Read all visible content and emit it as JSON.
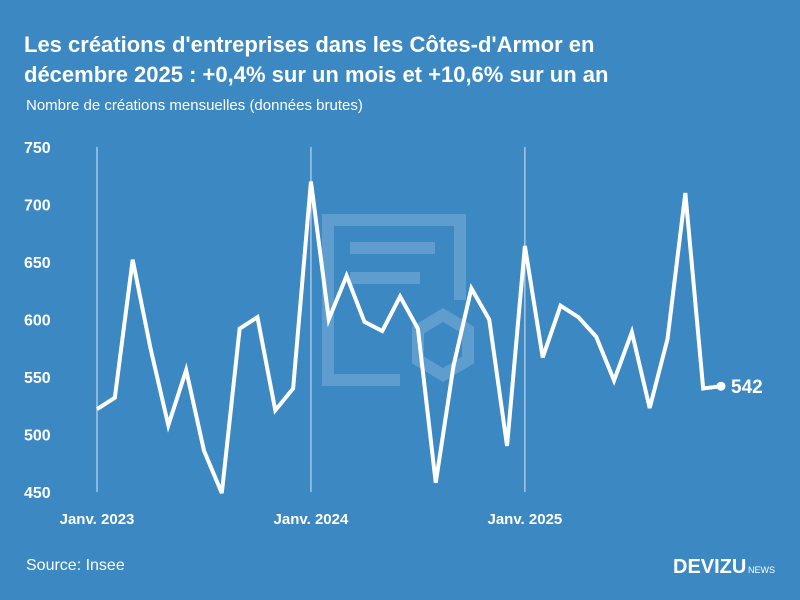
{
  "chart_data": {
    "type": "line",
    "title": "Les créations d'entreprises dans les Côtes-d'Armor en décembre 2025 : +0,4% sur un mois et +10,6% sur un an",
    "subtitle": "Nombre de créations mensuelles (données brutes)",
    "source": "Source: Insee",
    "brand": "DEVIZU",
    "brand_suffix": "NEWS",
    "categories": [
      "Janv. 2023",
      null,
      null,
      null,
      null,
      null,
      null,
      null,
      null,
      null,
      null,
      null,
      "Janv. 2024",
      null,
      null,
      null,
      null,
      null,
      null,
      null,
      null,
      null,
      null,
      null,
      "Janv. 2025",
      null,
      null,
      null,
      null,
      null,
      null,
      null,
      null,
      null,
      null,
      null
    ],
    "series": [
      {
        "color": "#ffffff",
        "values": [
          522,
          532,
          652,
          575,
          508,
          556,
          486,
          449,
          592,
          602,
          521,
          540,
          720,
          600,
          638,
          598,
          590,
          620,
          592,
          458,
          560,
          627,
          600,
          490,
          664,
          567,
          612,
          602,
          585,
          547,
          589,
          523,
          583,
          710,
          540,
          542
        ]
      }
    ],
    "ylim": [
      450,
      750
    ],
    "yticks": [
      450,
      500,
      550,
      600,
      650,
      700,
      750
    ],
    "grid": true
  }
}
